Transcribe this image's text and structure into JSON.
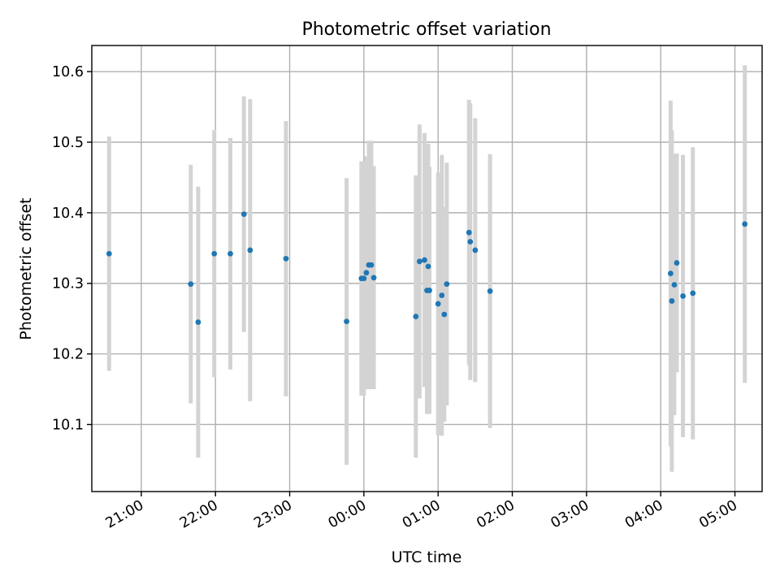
{
  "chart_data": {
    "type": "scatter",
    "title": "Photometric offset variation",
    "xlabel": "UTC time",
    "ylabel": "Photometric offset",
    "x_axis": {
      "kind": "time",
      "range": [
        "20:34",
        "05:08"
      ],
      "ticks": [
        "21:00",
        "22:00",
        "23:00",
        "00:00",
        "01:00",
        "02:00",
        "03:00",
        "04:00",
        "05:00"
      ]
    },
    "y_axis": {
      "range": [
        10.005,
        10.637
      ],
      "ticks": [
        "10.1",
        "10.2",
        "10.3",
        "10.4",
        "10.5",
        "10.6"
      ]
    },
    "grid": true,
    "error_bar_color": "#d3d3d3",
    "point_color": "#1f77b4",
    "points": [
      {
        "t": "20:34",
        "y": 10.342,
        "err": 0.166
      },
      {
        "t": "21:40",
        "y": 10.299,
        "err": 0.169
      },
      {
        "t": "21:46",
        "y": 10.245,
        "err": 0.192
      },
      {
        "t": "21:59",
        "y": 10.342,
        "err": 0.175
      },
      {
        "t": "22:12",
        "y": 10.342,
        "err": 0.164
      },
      {
        "t": "22:23",
        "y": 10.398,
        "err": 0.167
      },
      {
        "t": "22:28",
        "y": 10.347,
        "err": 0.214
      },
      {
        "t": "22:57",
        "y": 10.335,
        "err": 0.195
      },
      {
        "t": "23:46",
        "y": 10.246,
        "err": 0.203
      },
      {
        "t": "23:58",
        "y": 10.307,
        "err": 0.166
      },
      {
        "t": "00:00",
        "y": 10.307,
        "err": 0.166
      },
      {
        "t": "00:02",
        "y": 10.315,
        "err": 0.165
      },
      {
        "t": "00:04",
        "y": 10.326,
        "err": 0.176
      },
      {
        "t": "00:06",
        "y": 10.326,
        "err": 0.176
      },
      {
        "t": "00:08",
        "y": 10.308,
        "err": 0.158
      },
      {
        "t": "00:42",
        "y": 10.253,
        "err": 0.2
      },
      {
        "t": "00:45",
        "y": 10.331,
        "err": 0.194
      },
      {
        "t": "00:49",
        "y": 10.333,
        "err": 0.18
      },
      {
        "t": "00:51",
        "y": 10.29,
        "err": 0.175
      },
      {
        "t": "00:52",
        "y": 10.324,
        "err": 0.174
      },
      {
        "t": "00:53",
        "y": 10.29,
        "err": 0.175
      },
      {
        "t": "01:00",
        "y": 10.271,
        "err": 0.186
      },
      {
        "t": "01:03",
        "y": 10.283,
        "err": 0.199
      },
      {
        "t": "01:05",
        "y": 10.256,
        "err": 0.152
      },
      {
        "t": "01:07",
        "y": 10.299,
        "err": 0.172
      },
      {
        "t": "01:25",
        "y": 10.372,
        "err": 0.188
      },
      {
        "t": "01:26",
        "y": 10.359,
        "err": 0.196
      },
      {
        "t": "01:30",
        "y": 10.347,
        "err": 0.187
      },
      {
        "t": "01:42",
        "y": 10.289,
        "err": 0.194
      },
      {
        "t": "04:08",
        "y": 10.314,
        "err": 0.245
      },
      {
        "t": "04:09",
        "y": 10.275,
        "err": 0.242
      },
      {
        "t": "04:11",
        "y": 10.298,
        "err": 0.185
      },
      {
        "t": "04:13",
        "y": 10.329,
        "err": 0.155
      },
      {
        "t": "04:18",
        "y": 10.282,
        "err": 0.2
      },
      {
        "t": "04:26",
        "y": 10.286,
        "err": 0.207
      },
      {
        "t": "05:08",
        "y": 10.384,
        "err": 0.225
      }
    ]
  }
}
